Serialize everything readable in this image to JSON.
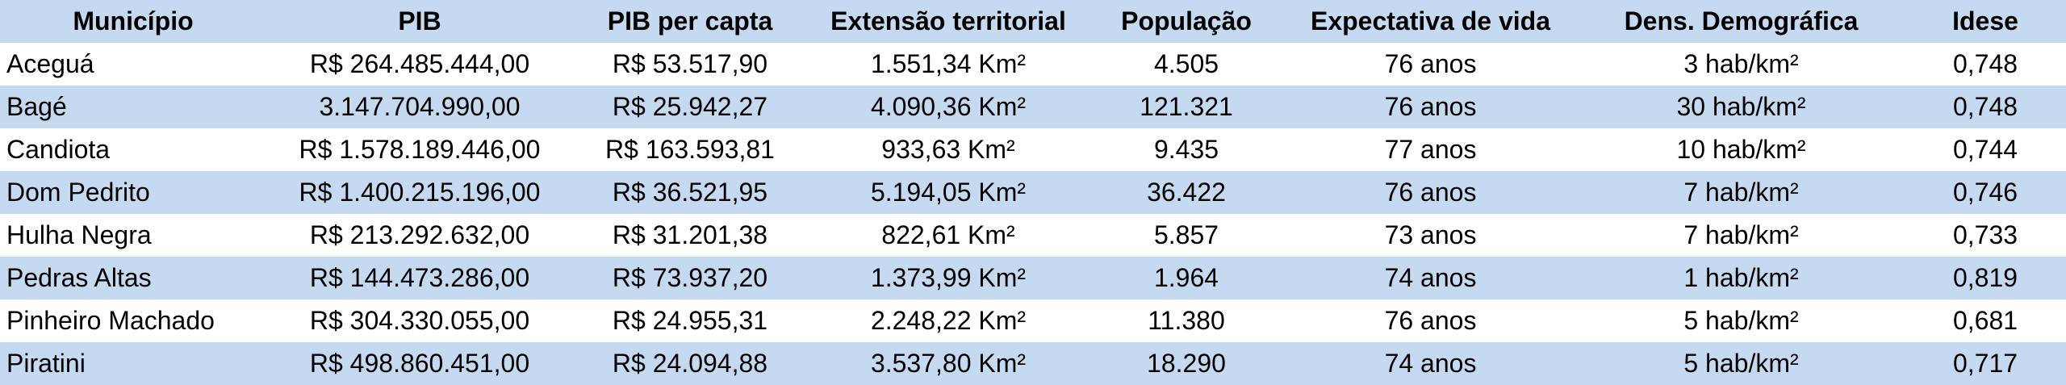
{
  "table": {
    "headers": [
      "Município",
      "PIB",
      "PIB per capta",
      "Extensão territorial",
      "População",
      "Expectativa de vida",
      "Dens. Demográfica",
      "Idese"
    ],
    "rows": [
      [
        "Aceguá",
        "R$ 264.485.444,00",
        "R$ 53.517,90",
        "1.551,34 Km²",
        "4.505",
        "76 anos",
        "3 hab/km²",
        "0,748"
      ],
      [
        "Bagé",
        "3.147.704.990,00",
        "R$ 25.942,27",
        "4.090,36 Km²",
        "121.321",
        "76 anos",
        "30 hab/km²",
        "0,748"
      ],
      [
        "Candiota",
        "R$ 1.578.189.446,00",
        "R$ 163.593,81",
        "933,63 Km²",
        "9.435",
        "77 anos",
        "10 hab/km²",
        "0,744"
      ],
      [
        "Dom Pedrito",
        "R$ 1.400.215.196,00",
        "R$ 36.521,95",
        "5.194,05 Km²",
        "36.422",
        "76 anos",
        "7 hab/km²",
        "0,746"
      ],
      [
        "Hulha Negra",
        "R$ 213.292.632,00",
        "R$ 31.201,38",
        "822,61 Km²",
        "5.857",
        "73 anos",
        "7 hab/km²",
        "0,733"
      ],
      [
        "Pedras Altas",
        "R$ 144.473.286,00",
        "R$ 73.937,20",
        "1.373,99 Km²",
        "1.964",
        "74 anos",
        "1 hab/km²",
        "0,819"
      ],
      [
        "Pinheiro Machado",
        "R$ 304.330.055,00",
        "R$ 24.955,31",
        "2.248,22 Km²",
        "11.380",
        "76 anos",
        "5 hab/km²",
        "0,681"
      ],
      [
        "Piratini",
        "R$ 498.860.451,00",
        "R$ 24.094,88",
        "3.537,80 Km²",
        "18.290",
        "74 anos",
        "5 hab/km²",
        "0,717"
      ]
    ]
  },
  "colors": {
    "band_blue": "#c5d9f1",
    "band_white": "#ffffff"
  }
}
